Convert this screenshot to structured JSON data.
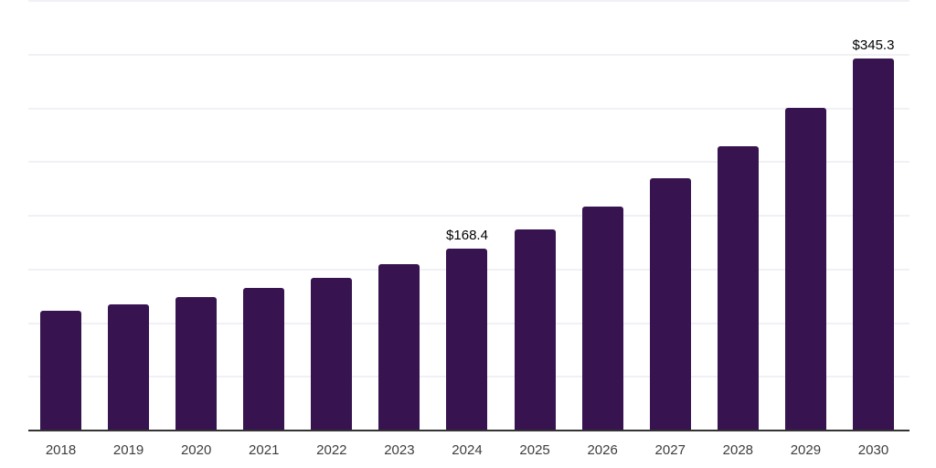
{
  "chart_data": {
    "type": "bar",
    "title": "",
    "xlabel": "",
    "ylabel": "",
    "categories": [
      "2018",
      "2019",
      "2020",
      "2021",
      "2022",
      "2023",
      "2024",
      "2025",
      "2026",
      "2027",
      "2028",
      "2029",
      "2030"
    ],
    "values": [
      111,
      117,
      123,
      132,
      141,
      154,
      168.4,
      186,
      208,
      234,
      264,
      300,
      345.3
    ],
    "data_labels": [
      "",
      "",
      "",
      "",
      "",
      "",
      "$168.4",
      "",
      "",
      "",
      "",
      "",
      "$345.3"
    ],
    "ylim": [
      0,
      400
    ],
    "gridline_interval": 50,
    "grid": true,
    "legend": false,
    "y_tick_labels_shown": false,
    "colors": {
      "bar": "#371450",
      "gridline": "#f1f1f5",
      "axis_line": "#333333",
      "tick_label": "#3d3d3d",
      "data_label": "#000000",
      "background": "#ffffff"
    }
  }
}
